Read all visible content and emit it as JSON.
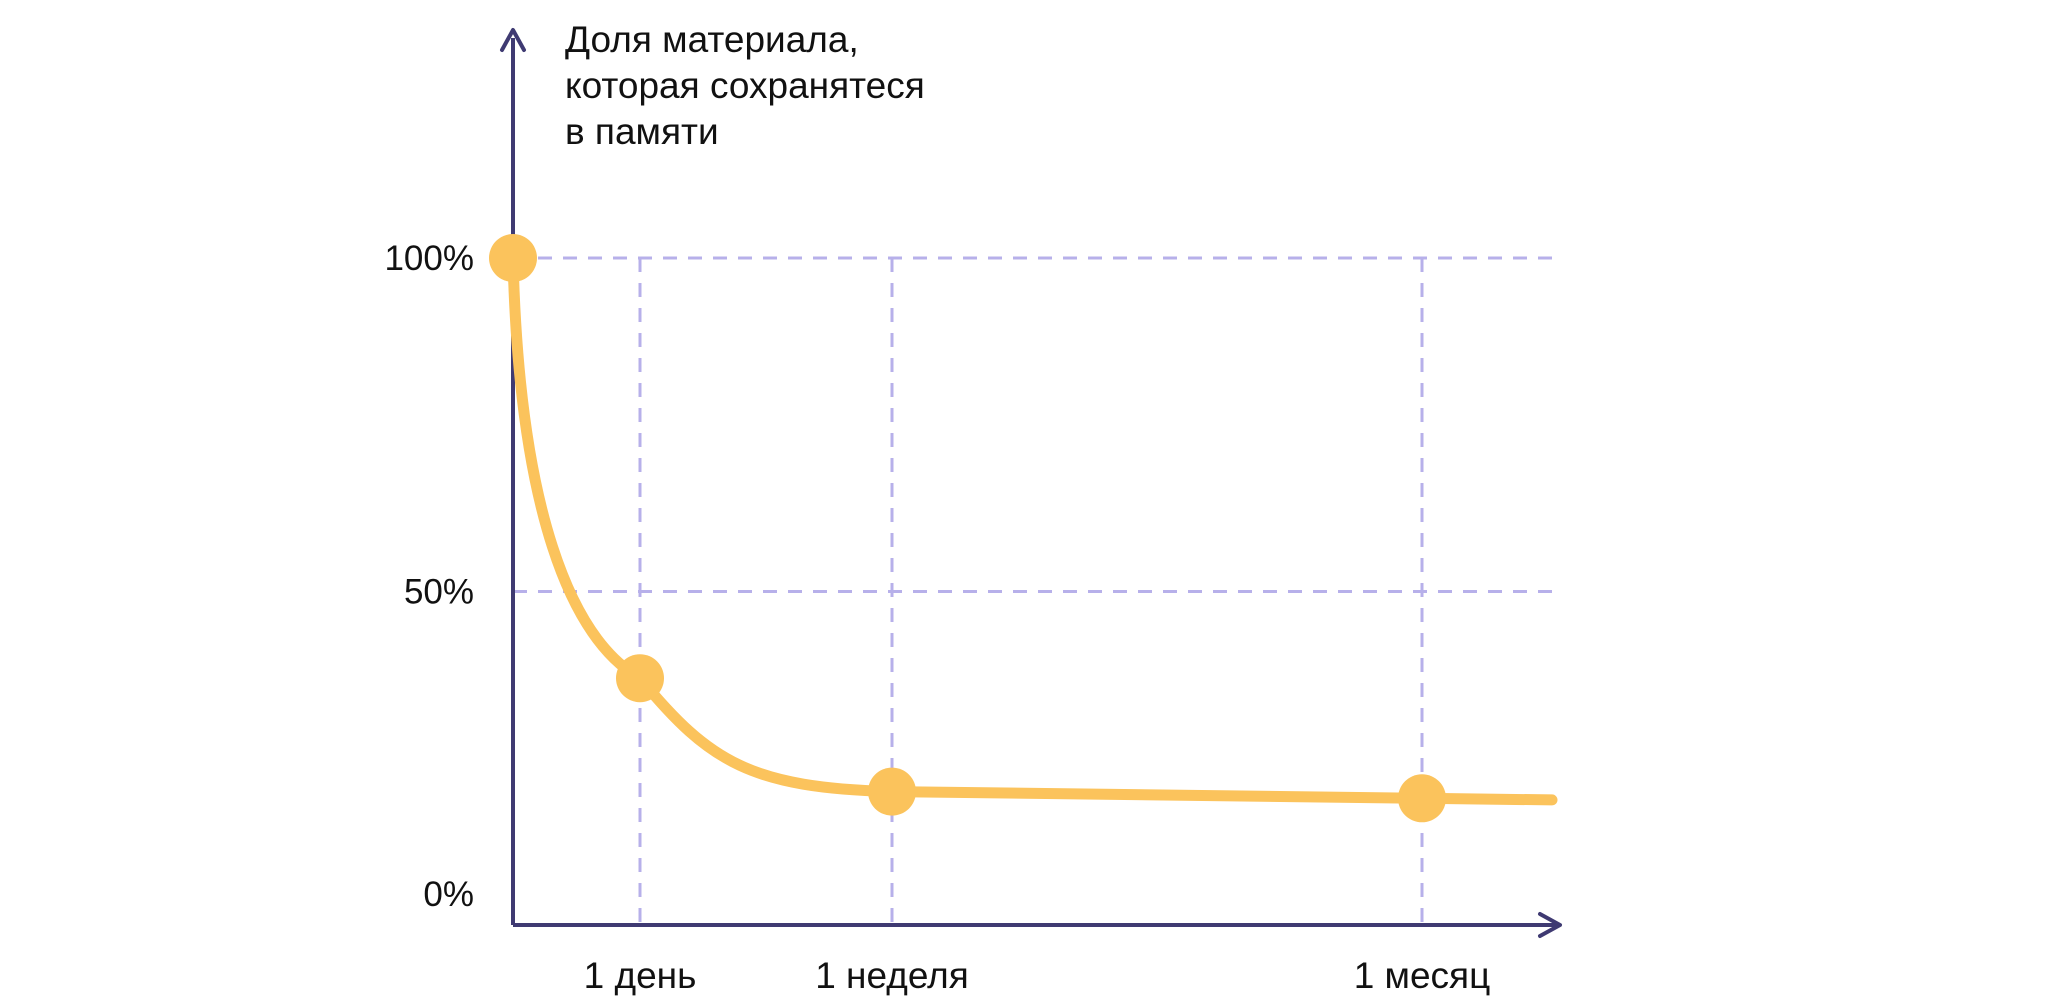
{
  "chart_data": {
    "type": "line",
    "ylabel": [
      "Доля материала,",
      "которая сохранятеся",
      "в памяти"
    ],
    "xlabel": "",
    "y_ticks": [
      {
        "value": 100,
        "label": "100%"
      },
      {
        "value": 50,
        "label": "50%"
      },
      {
        "value": 0,
        "label": "0%"
      }
    ],
    "x_ticks": [
      {
        "label": "1 день"
      },
      {
        "label": "1 неделя"
      },
      {
        "label": "1 месяц"
      }
    ],
    "ylim": [
      0,
      100
    ],
    "grid": true,
    "series": [
      {
        "points": [
          {
            "t": 0,
            "value": 100
          },
          {
            "t": 1,
            "value": 37
          },
          {
            "t": 2,
            "value": 20
          },
          {
            "t": 3,
            "value": 19
          }
        ]
      }
    ],
    "colors": {
      "axis": "#3f3a72",
      "grid": "#b7b0ea",
      "curve": "#fbc35c",
      "text": "#111111"
    }
  }
}
